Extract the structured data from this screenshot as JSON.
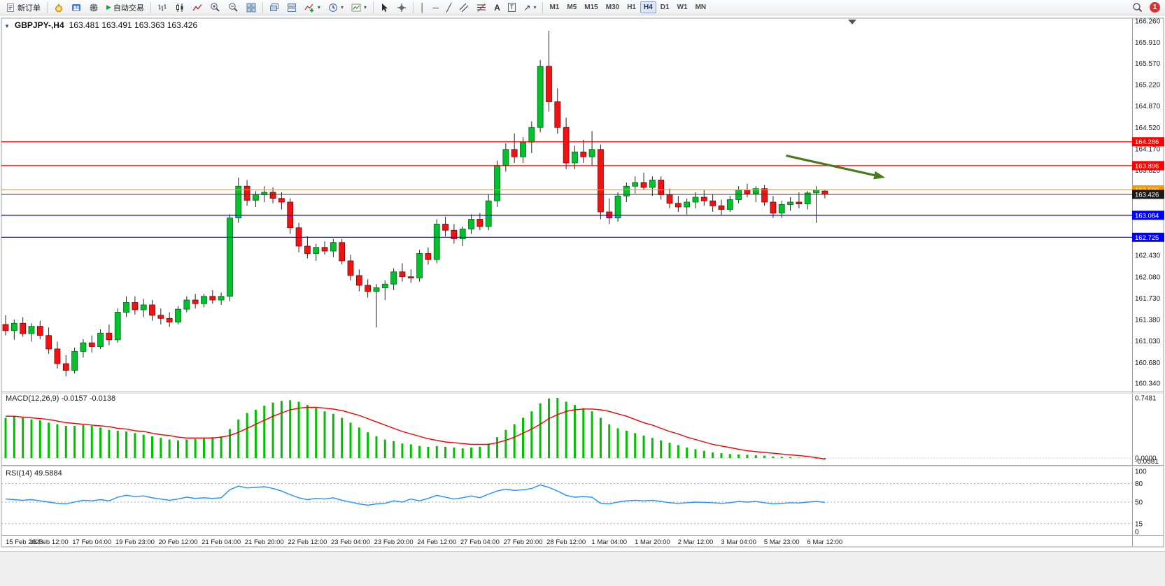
{
  "toolbar": {
    "new_order": "新订单",
    "autotrade": "自动交易",
    "timeframes": [
      "M1",
      "M5",
      "M15",
      "M30",
      "H1",
      "H4",
      "D1",
      "W1",
      "MN"
    ],
    "active_timeframe": "H4",
    "badge_count": "1"
  },
  "icons": {
    "collapse": "▼",
    "play": "▶",
    "dropdown": "▾",
    "vline": "│",
    "hline": "─",
    "trendline": "╱",
    "text": "A",
    "label": "T",
    "arrows": "↗"
  },
  "chart": {
    "symbol": "GBPJPY-,H4",
    "ohlc": "163.481 163.491 163.363 163.426",
    "macd_label": "MACD(12,26,9) -0.0157 -0.0138",
    "rsi_label": "RSI(14) 49.5884"
  },
  "chart_data": {
    "type": "candlestick",
    "symbol": "GBPJPY-",
    "timeframe": "H4",
    "ohlc_current": {
      "open": 163.481,
      "high": 163.491,
      "low": 163.363,
      "close": 163.426
    },
    "price_axis": {
      "min": 160.28,
      "max": 166.42,
      "ticks": [
        "166.260",
        "165.910",
        "165.570",
        "165.220",
        "164.870",
        "164.520",
        "164.170",
        "163.820",
        "162.430",
        "162.080",
        "161.730",
        "161.380",
        "161.030",
        "160.680",
        "160.340"
      ]
    },
    "hlines": [
      {
        "price": 164.286,
        "label": "164.286",
        "color": "#FF0000",
        "kind": "resistance"
      },
      {
        "price": 163.896,
        "label": "163.896",
        "color": "#FF0000",
        "kind": "resistance"
      },
      {
        "price": 163.5,
        "label": "163.500",
        "color": "#FF9800",
        "kind": "pivot"
      },
      {
        "price": 163.426,
        "label": "163.426",
        "color": "#3a3a3a",
        "kind": "current-price"
      },
      {
        "price": 163.084,
        "label": "163.084",
        "color": "#0000FF",
        "kind": "support"
      },
      {
        "price": 162.725,
        "label": "162.725",
        "color": "#0000FF",
        "kind": "support"
      }
    ],
    "arrow": {
      "from_index": 90.5,
      "from_price": 164.06,
      "to_index": 102,
      "to_price": 163.7,
      "color": "#4a7a1e"
    },
    "candles": [
      [
        161.3,
        161.45,
        161.12,
        161.2
      ],
      [
        161.2,
        161.38,
        161.05,
        161.32
      ],
      [
        161.32,
        161.42,
        161.1,
        161.15
      ],
      [
        161.15,
        161.32,
        161.02,
        161.27
      ],
      [
        161.27,
        161.36,
        161.06,
        161.12
      ],
      [
        161.12,
        161.25,
        160.82,
        160.9
      ],
      [
        160.9,
        161.02,
        160.58,
        160.66
      ],
      [
        160.66,
        160.8,
        160.45,
        160.55
      ],
      [
        160.55,
        160.92,
        160.5,
        160.86
      ],
      [
        160.86,
        161.06,
        160.76,
        161.0
      ],
      [
        161.0,
        161.12,
        160.84,
        160.94
      ],
      [
        160.94,
        161.22,
        160.9,
        161.16
      ],
      [
        161.16,
        161.3,
        160.96,
        161.05
      ],
      [
        161.05,
        161.56,
        161.0,
        161.5
      ],
      [
        161.5,
        161.76,
        161.42,
        161.66
      ],
      [
        161.66,
        161.76,
        161.46,
        161.54
      ],
      [
        161.54,
        161.72,
        161.42,
        161.62
      ],
      [
        161.62,
        161.7,
        161.36,
        161.45
      ],
      [
        161.45,
        161.56,
        161.3,
        161.4
      ],
      [
        161.4,
        161.5,
        161.26,
        161.34
      ],
      [
        161.34,
        161.6,
        161.3,
        161.55
      ],
      [
        161.55,
        161.76,
        161.5,
        161.7
      ],
      [
        161.7,
        161.8,
        161.56,
        161.64
      ],
      [
        161.64,
        161.8,
        161.58,
        161.76
      ],
      [
        161.76,
        161.86,
        161.64,
        161.7
      ],
      [
        161.7,
        161.82,
        161.62,
        161.76
      ],
      [
        161.76,
        163.1,
        161.68,
        163.04
      ],
      [
        163.04,
        163.7,
        162.96,
        163.56
      ],
      [
        163.56,
        163.66,
        163.24,
        163.33
      ],
      [
        163.33,
        163.48,
        163.22,
        163.42
      ],
      [
        163.42,
        163.56,
        163.3,
        163.46
      ],
      [
        163.46,
        163.54,
        163.28,
        163.36
      ],
      [
        163.36,
        163.46,
        163.18,
        163.3
      ],
      [
        163.3,
        163.36,
        162.78,
        162.88
      ],
      [
        162.88,
        162.96,
        162.48,
        162.58
      ],
      [
        162.58,
        162.74,
        162.38,
        162.46
      ],
      [
        162.46,
        162.62,
        162.34,
        162.56
      ],
      [
        162.56,
        162.66,
        162.44,
        162.5
      ],
      [
        162.5,
        162.7,
        162.4,
        162.64
      ],
      [
        162.64,
        162.7,
        162.28,
        162.34
      ],
      [
        162.34,
        162.44,
        162.02,
        162.1
      ],
      [
        162.1,
        162.2,
        161.84,
        161.94
      ],
      [
        161.94,
        162.04,
        161.74,
        161.84
      ],
      [
        161.84,
        161.96,
        161.25,
        161.9
      ],
      [
        161.9,
        162.02,
        161.7,
        161.96
      ],
      [
        161.96,
        162.22,
        161.86,
        162.16
      ],
      [
        162.16,
        162.3,
        162.0,
        162.08
      ],
      [
        162.08,
        162.2,
        161.98,
        162.06
      ],
      [
        162.06,
        162.52,
        162.0,
        162.46
      ],
      [
        162.46,
        162.56,
        162.28,
        162.36
      ],
      [
        162.36,
        163.02,
        162.3,
        162.94
      ],
      [
        162.94,
        163.06,
        162.74,
        162.84
      ],
      [
        162.84,
        162.94,
        162.62,
        162.7
      ],
      [
        162.7,
        162.9,
        162.58,
        162.86
      ],
      [
        162.86,
        163.1,
        162.78,
        163.02
      ],
      [
        163.02,
        163.12,
        162.84,
        162.9
      ],
      [
        162.9,
        163.42,
        162.84,
        163.32
      ],
      [
        163.32,
        163.98,
        163.22,
        163.9
      ],
      [
        163.9,
        164.26,
        163.8,
        164.16
      ],
      [
        164.16,
        164.42,
        163.94,
        164.04
      ],
      [
        164.04,
        164.36,
        163.94,
        164.28
      ],
      [
        164.28,
        164.62,
        164.1,
        164.52
      ],
      [
        164.52,
        165.62,
        164.44,
        165.52
      ],
      [
        165.52,
        166.1,
        164.78,
        164.94
      ],
      [
        164.94,
        165.16,
        164.42,
        164.52
      ],
      [
        164.52,
        164.68,
        163.84,
        163.94
      ],
      [
        163.94,
        164.22,
        163.84,
        164.12
      ],
      [
        164.12,
        164.32,
        163.94,
        164.04
      ],
      [
        164.04,
        164.46,
        163.9,
        164.16
      ],
      [
        164.16,
        164.24,
        163.02,
        163.14
      ],
      [
        163.14,
        163.36,
        162.94,
        163.04
      ],
      [
        163.04,
        163.46,
        162.98,
        163.4
      ],
      [
        163.4,
        163.62,
        163.3,
        163.56
      ],
      [
        163.56,
        163.72,
        163.44,
        163.62
      ],
      [
        163.62,
        163.78,
        163.5,
        163.54
      ],
      [
        163.54,
        163.72,
        163.4,
        163.66
      ],
      [
        163.66,
        163.72,
        163.34,
        163.42
      ],
      [
        163.42,
        163.52,
        163.2,
        163.28
      ],
      [
        163.28,
        163.4,
        163.14,
        163.22
      ],
      [
        163.22,
        163.36,
        163.1,
        163.3
      ],
      [
        163.3,
        163.46,
        163.2,
        163.38
      ],
      [
        163.38,
        163.5,
        163.24,
        163.32
      ],
      [
        163.32,
        163.42,
        163.14,
        163.24
      ],
      [
        163.24,
        163.34,
        163.08,
        163.18
      ],
      [
        163.18,
        163.4,
        163.14,
        163.34
      ],
      [
        163.34,
        163.56,
        163.28,
        163.5
      ],
      [
        163.5,
        163.6,
        163.38,
        163.44
      ],
      [
        163.44,
        163.56,
        163.3,
        163.52
      ],
      [
        163.52,
        163.58,
        163.24,
        163.3
      ],
      [
        163.3,
        163.4,
        163.04,
        163.12
      ],
      [
        163.12,
        163.32,
        163.04,
        163.26
      ],
      [
        163.26,
        163.38,
        163.16,
        163.3
      ],
      [
        163.3,
        163.46,
        163.2,
        163.27
      ],
      [
        163.27,
        163.48,
        163.18,
        163.45
      ],
      [
        163.45,
        163.56,
        162.96,
        163.5
      ],
      [
        163.481,
        163.491,
        163.363,
        163.426
      ]
    ],
    "macd": {
      "params": "12,26,9",
      "main": -0.0157,
      "signal_value": -0.0138,
      "histogram": [
        0.5,
        0.52,
        0.5,
        0.48,
        0.47,
        0.44,
        0.42,
        0.4,
        0.4,
        0.41,
        0.4,
        0.38,
        0.35,
        0.34,
        0.33,
        0.31,
        0.29,
        0.27,
        0.25,
        0.23,
        0.22,
        0.23,
        0.24,
        0.25,
        0.26,
        0.27,
        0.36,
        0.48,
        0.56,
        0.6,
        0.65,
        0.69,
        0.71,
        0.72,
        0.7,
        0.66,
        0.62,
        0.58,
        0.55,
        0.5,
        0.44,
        0.38,
        0.32,
        0.27,
        0.23,
        0.21,
        0.18,
        0.17,
        0.15,
        0.14,
        0.15,
        0.14,
        0.13,
        0.12,
        0.13,
        0.14,
        0.18,
        0.26,
        0.35,
        0.42,
        0.5,
        0.58,
        0.68,
        0.74,
        0.748,
        0.7,
        0.66,
        0.62,
        0.58,
        0.5,
        0.42,
        0.37,
        0.34,
        0.31,
        0.28,
        0.25,
        0.22,
        0.19,
        0.16,
        0.13,
        0.11,
        0.09,
        0.07,
        0.06,
        0.05,
        0.045,
        0.04,
        0.035,
        0.03,
        0.02,
        0.015,
        0.01,
        0.005,
        0.0,
        -0.008,
        -0.0157
      ],
      "signal": [
        0.52,
        0.52,
        0.51,
        0.5,
        0.49,
        0.48,
        0.46,
        0.44,
        0.43,
        0.42,
        0.41,
        0.4,
        0.39,
        0.37,
        0.36,
        0.34,
        0.33,
        0.31,
        0.29,
        0.28,
        0.26,
        0.25,
        0.25,
        0.25,
        0.25,
        0.26,
        0.28,
        0.32,
        0.37,
        0.42,
        0.47,
        0.52,
        0.56,
        0.6,
        0.62,
        0.63,
        0.63,
        0.62,
        0.61,
        0.59,
        0.56,
        0.53,
        0.49,
        0.45,
        0.41,
        0.37,
        0.33,
        0.3,
        0.27,
        0.24,
        0.22,
        0.2,
        0.19,
        0.18,
        0.17,
        0.17,
        0.17,
        0.19,
        0.22,
        0.26,
        0.31,
        0.36,
        0.42,
        0.49,
        0.54,
        0.58,
        0.6,
        0.61,
        0.61,
        0.6,
        0.58,
        0.55,
        0.52,
        0.48,
        0.44,
        0.41,
        0.37,
        0.33,
        0.3,
        0.26,
        0.23,
        0.2,
        0.17,
        0.15,
        0.13,
        0.11,
        0.09,
        0.08,
        0.07,
        0.06,
        0.05,
        0.04,
        0.03,
        0.02,
        0.005,
        -0.0138
      ],
      "axis_labels": [
        {
          "v": 0.7481,
          "label": "0.7481"
        },
        {
          "v": 0.0,
          "label": "0.0000"
        },
        {
          "v": -0.0581,
          "label": "-0.0581"
        }
      ]
    },
    "rsi": {
      "period": 14,
      "current": 49.5884,
      "levels": [
        80,
        50,
        15
      ],
      "axis_labels": [
        {
          "v": 100,
          "label": "100"
        },
        {
          "v": 80,
          "label": "80"
        },
        {
          "v": 50,
          "label": "50"
        },
        {
          "v": 15,
          "label": "15"
        },
        {
          "v": 0,
          "label": "0"
        }
      ],
      "values": [
        55,
        54,
        53,
        54,
        52,
        50,
        48,
        47,
        50,
        53,
        52,
        54,
        52,
        58,
        61,
        59,
        60,
        57,
        55,
        53,
        55,
        58,
        56,
        57,
        56,
        57,
        70,
        76,
        73,
        74,
        75,
        72,
        68,
        62,
        57,
        54,
        56,
        55,
        57,
        53,
        50,
        47,
        45,
        47,
        48,
        52,
        50,
        55,
        52,
        56,
        61,
        58,
        55,
        57,
        60,
        57,
        63,
        68,
        71,
        69,
        70,
        72,
        78,
        74,
        68,
        61,
        58,
        59,
        58,
        48,
        47,
        50,
        52,
        53,
        52,
        53,
        51,
        49,
        48,
        49,
        50,
        49.5,
        49,
        48,
        49,
        51,
        50,
        51,
        49,
        47,
        48,
        49,
        48.5,
        50,
        51,
        49.5884
      ]
    },
    "time_axis": [
      {
        "i": 0,
        "label": "15 Feb 2023"
      },
      {
        "i": 5,
        "label": "16 Feb 12:00"
      },
      {
        "i": 10,
        "label": "17 Feb 04:00"
      },
      {
        "i": 15,
        "label": "19 Feb 23:00"
      },
      {
        "i": 20,
        "label": "20 Feb 12:00"
      },
      {
        "i": 25,
        "label": "21 Feb 04:00"
      },
      {
        "i": 30,
        "label": "21 Feb 20:00"
      },
      {
        "i": 35,
        "label": "22 Feb 12:00"
      },
      {
        "i": 40,
        "label": "23 Feb 04:00"
      },
      {
        "i": 45,
        "label": "23 Feb 20:00"
      },
      {
        "i": 50,
        "label": "24 Feb 12:00"
      },
      {
        "i": 55,
        "label": "27 Feb 04:00"
      },
      {
        "i": 60,
        "label": "27 Feb 20:00"
      },
      {
        "i": 65,
        "label": "28 Feb 12:00"
      },
      {
        "i": 70,
        "label": "1 Mar 04:00"
      },
      {
        "i": 75,
        "label": "1 Mar 20:00"
      },
      {
        "i": 80,
        "label": "2 Mar 12:00"
      },
      {
        "i": 85,
        "label": "3 Mar 04:00"
      },
      {
        "i": 90,
        "label": "5 Mar 23:00"
      },
      {
        "i": 95,
        "label": "6 Mar 12:00"
      }
    ]
  }
}
